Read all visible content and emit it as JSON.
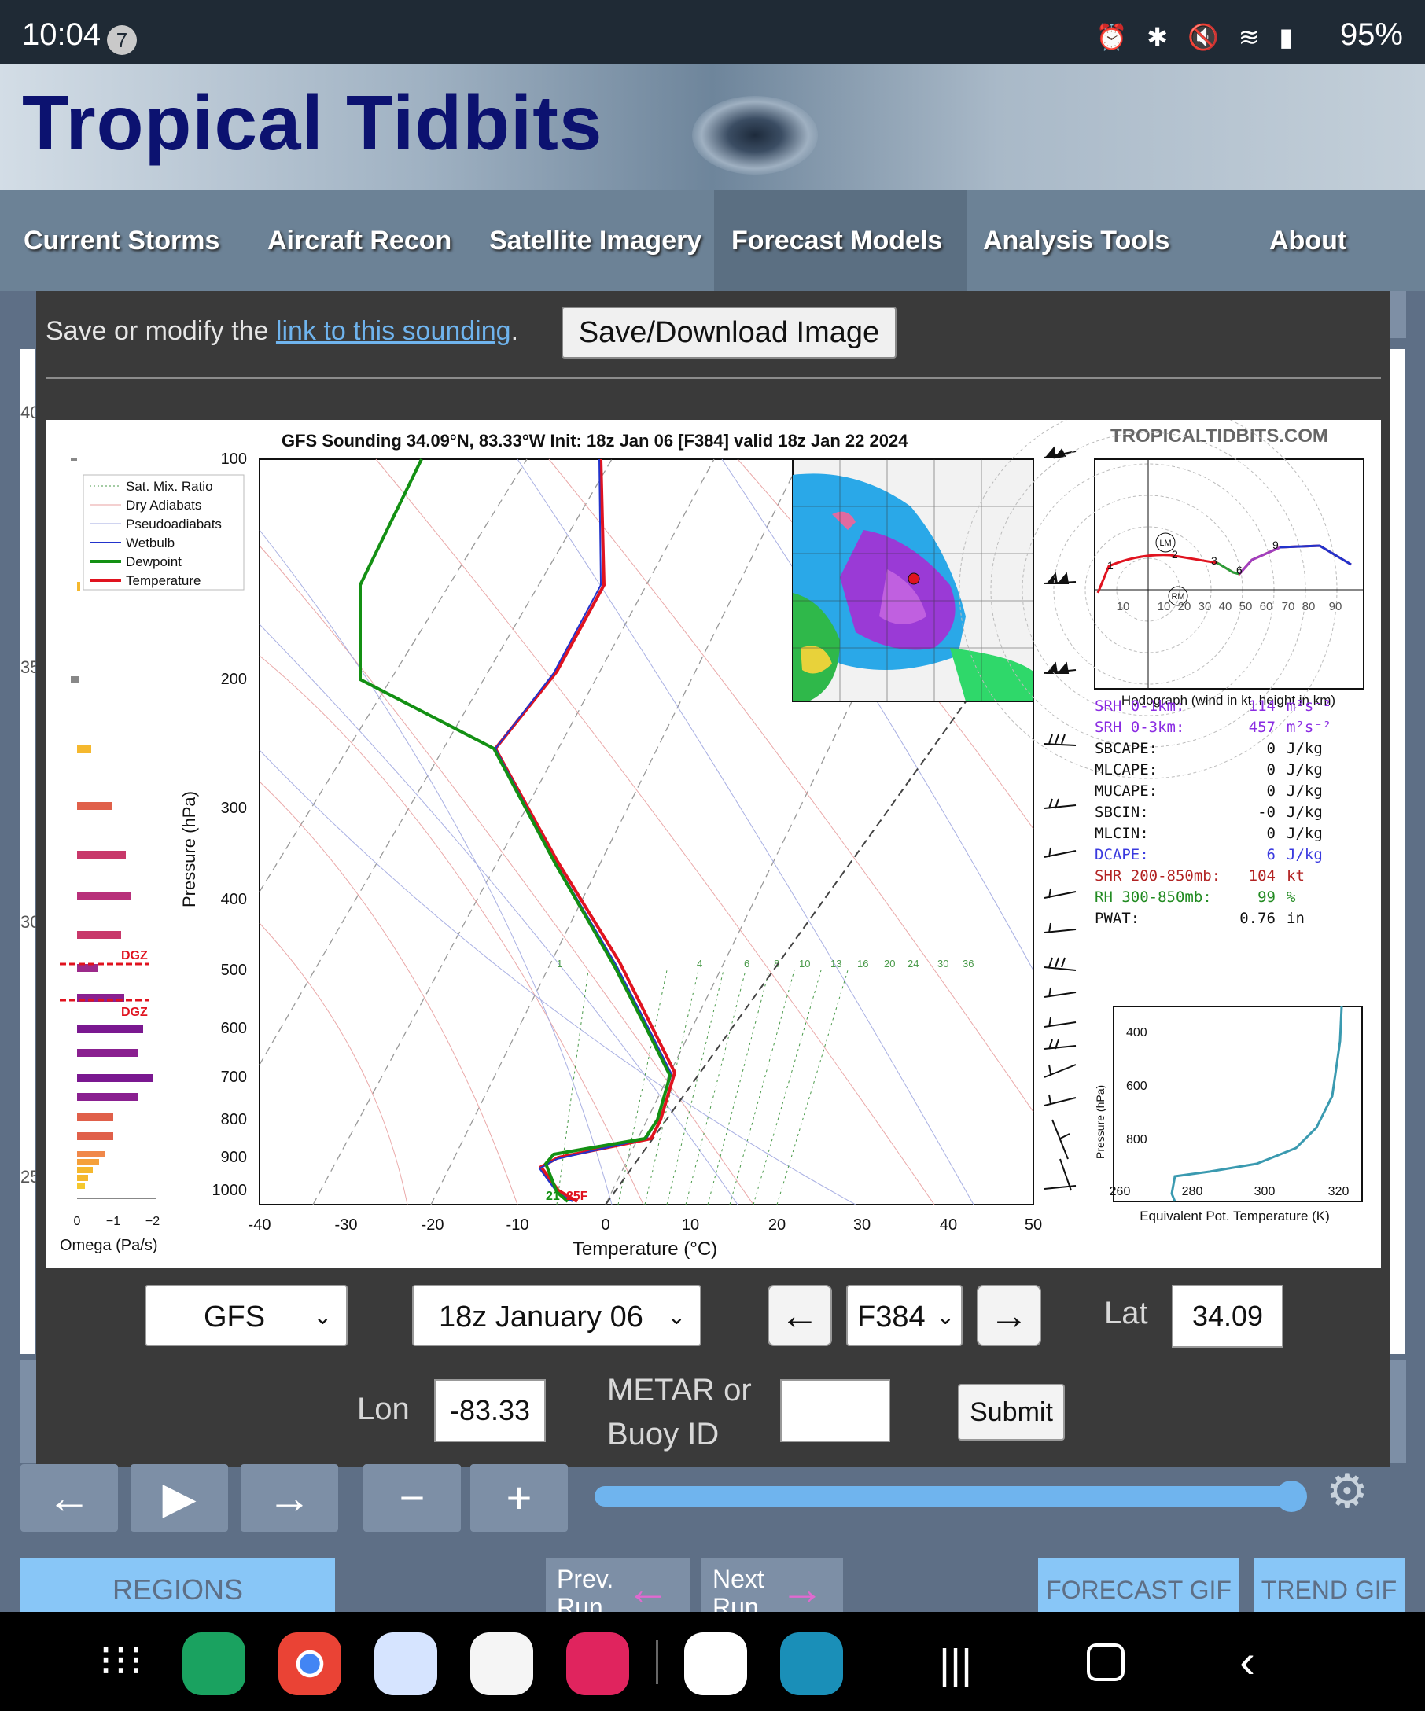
{
  "status": {
    "time": "10:04",
    "notif_count": "7",
    "battery": "95%"
  },
  "site": {
    "logo": "Tropical Tidbits"
  },
  "nav": [
    "Current Storms",
    "Aircraft Recon",
    "Satellite Imagery",
    "Forecast Models",
    "Analysis Tools",
    "About"
  ],
  "modal": {
    "save_text_pre": "Save or modify the ",
    "save_link": "link to this sounding",
    "save_text_post": ".",
    "save_button": "Save/Download Image"
  },
  "sounding": {
    "title": "GFS Sounding 34.09°N, 83.33°W Init: 18z Jan 06 [F384] valid 18z Jan 22 2024",
    "brand": "TROPICALTIDBITS.COM",
    "legend": [
      "Sat. Mix. Ratio",
      "Dry Adiabats",
      "Pseudoadiabats",
      "Wetbulb",
      "Dewpoint",
      "Temperature"
    ],
    "ylabel": "Pressure (hPa)",
    "xlabel": "Temperature (°C)",
    "pressure_ticks": [
      "100",
      "200",
      "300",
      "400",
      "500",
      "600",
      "700",
      "800",
      "900",
      "1000"
    ],
    "temp_ticks": [
      "-40",
      "-30",
      "-20",
      "-10",
      "0",
      "10",
      "20",
      "30",
      "40",
      "50"
    ],
    "mix_ratio_labels": [
      "1",
      "4",
      "6",
      "8",
      "10",
      "13",
      "16",
      "20",
      "24",
      "30",
      "36"
    ],
    "omega_label": "Omega (Pa/s)",
    "omega_ticks": [
      "0",
      "−1",
      "−2"
    ],
    "dgz": "DGZ",
    "surface_labels": [
      "21",
      "25F"
    ],
    "hodo_caption": "Hodograph (wind in kt, height in km)",
    "hodo_ticks": [
      "10",
      "10",
      "20",
      "30",
      "40",
      "50",
      "60",
      "70",
      "80",
      "90"
    ],
    "hodo_markers": [
      "LM",
      "RM"
    ],
    "hodo_heights": [
      "1",
      "2",
      "3",
      "6",
      "9"
    ],
    "stats": [
      {
        "label": "SRH 0-1km:",
        "value": "114",
        "unit": "m²s⁻²",
        "color": "#8a2be2"
      },
      {
        "label": "SRH 0-3km:",
        "value": "457",
        "unit": "m²s⁻²",
        "color": "#8a2be2"
      },
      {
        "label": "SBCAPE:",
        "value": "0",
        "unit": "J/kg",
        "color": "#111111"
      },
      {
        "label": "MLCAPE:",
        "value": "0",
        "unit": "J/kg",
        "color": "#111111"
      },
      {
        "label": "MUCAPE:",
        "value": "0",
        "unit": "J/kg",
        "color": "#111111"
      },
      {
        "label": "SBCIN:",
        "value": "-0",
        "unit": "J/kg",
        "color": "#111111"
      },
      {
        "label": "MLCIN:",
        "value": "0",
        "unit": "J/kg",
        "color": "#111111"
      },
      {
        "label": "DCAPE:",
        "value": "6",
        "unit": "J/kg",
        "color": "#3a3adf"
      },
      {
        "label": "SHR 200-850mb:",
        "value": "104",
        "unit": "kt",
        "color": "#b22222"
      },
      {
        "label": "RH 300-850mb:",
        "value": "99",
        "unit": "%",
        "color": "#228b22"
      },
      {
        "label": "PWAT:",
        "value": "0.76",
        "unit": "in",
        "color": "#111111"
      }
    ],
    "theta_ylabel": "Pressure (hPa)",
    "theta_xlabel": "Equivalent Pot. Temperature (K)",
    "theta_yticks": [
      "400",
      "600",
      "800"
    ],
    "theta_xticks": [
      "260",
      "280",
      "300",
      "320"
    ]
  },
  "controls": {
    "model": "GFS",
    "init": "18z January 06",
    "forecast_hour": "F384",
    "lat_label": "Lat",
    "lat_value": "34.09",
    "lon_label": "Lon",
    "lon_value": "-83.33",
    "metar_label_1": "METAR or",
    "metar_label_2": "Buoy ID",
    "metar_value": "",
    "submit": "Submit"
  },
  "page_controls": {
    "regions": "REGIONS",
    "prev_run": "Prev. Run",
    "next_run": "Next Run",
    "forecast_gif": "FORECAST GIF",
    "trend_gif": "TREND GIF",
    "side_labels": [
      "40",
      "35",
      "30",
      "25"
    ]
  },
  "colors": {
    "temperature": "#e0131f",
    "dewpoint": "#139013",
    "wetbulb": "#2233cc",
    "accent": "#6fb4ee"
  }
}
